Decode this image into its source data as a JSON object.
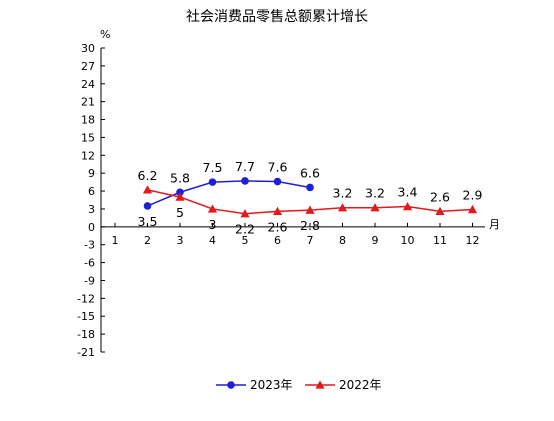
{
  "chart_data": {
    "type": "line",
    "title": "社会消费品零售总额累计增长",
    "y_unit": "%",
    "x_unit": "月",
    "categories": [
      "1",
      "2",
      "3",
      "4",
      "5",
      "6",
      "7",
      "8",
      "9",
      "10",
      "11",
      "12"
    ],
    "ylim": [
      -21,
      30
    ],
    "y_ticks": [
      "30",
      "27",
      "24",
      "21",
      "18",
      "15",
      "12",
      "9",
      "6",
      "3",
      "0",
      "-3",
      "-6",
      "-9",
      "-12",
      "-15",
      "-18",
      "-21"
    ],
    "grid": false,
    "legend_position": "bottom",
    "series": [
      {
        "name": "2023年",
        "color": "#1f1fd6",
        "marker": "circle",
        "x": [
          "2",
          "3",
          "4",
          "5",
          "6",
          "7"
        ],
        "values": [
          3.5,
          5.8,
          7.5,
          7.7,
          7.6,
          6.6
        ],
        "labels": [
          "3.5",
          "5.8",
          "7.5",
          "7.7",
          "7.6",
          "6.6"
        ]
      },
      {
        "name": "2022年",
        "color": "#e31a1c",
        "marker": "triangle",
        "x": [
          "2",
          "3",
          "4",
          "5",
          "6",
          "7",
          "8",
          "9",
          "10",
          "11",
          "12"
        ],
        "values": [
          6.2,
          5.0,
          3.0,
          2.2,
          2.6,
          2.8,
          3.2,
          3.2,
          3.4,
          2.6,
          2.9
        ],
        "labels": [
          "6.2",
          "5",
          "3",
          "2.2",
          "2.6",
          "2.8",
          "3.2",
          "3.2",
          "3.4",
          "2.6",
          "2.9"
        ]
      }
    ]
  }
}
